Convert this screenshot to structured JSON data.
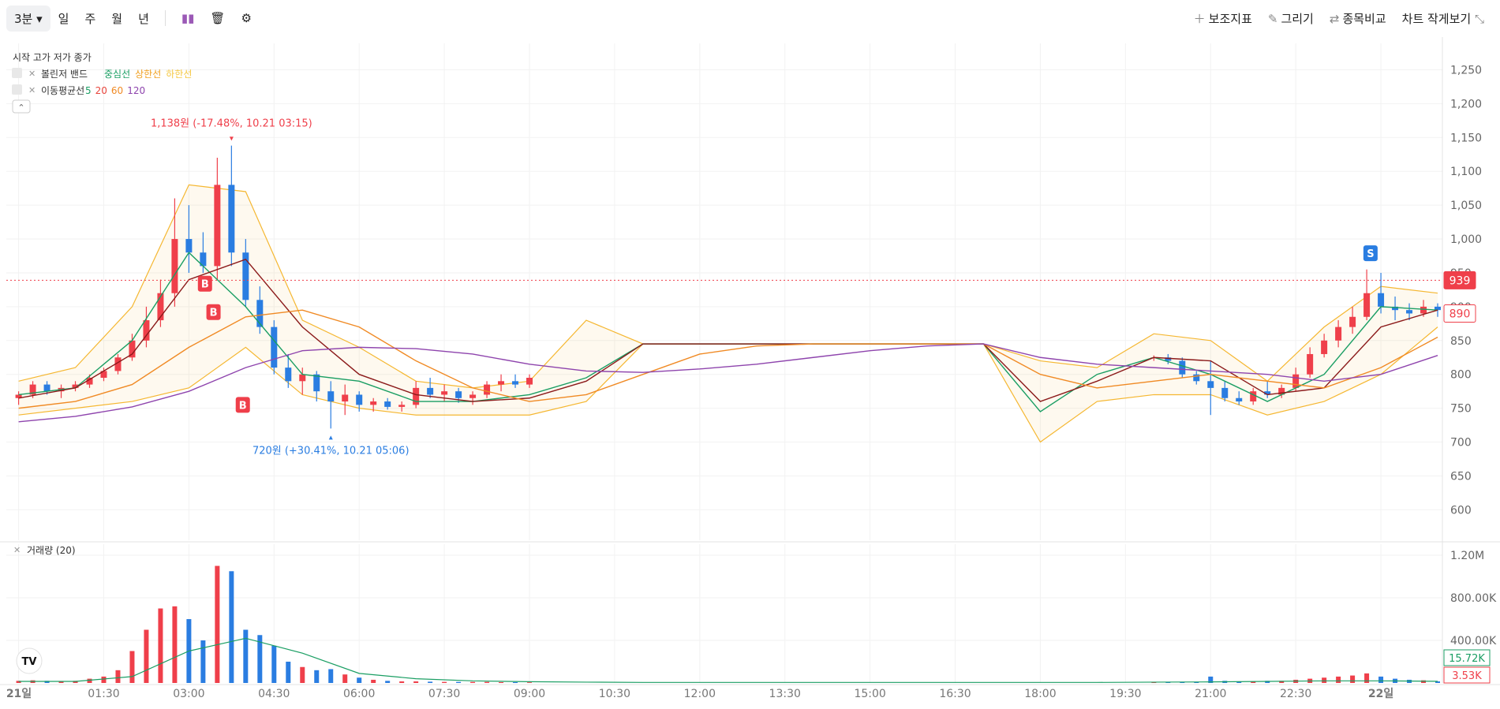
{
  "toolbar": {
    "interval": "3분",
    "periods": [
      "일",
      "주",
      "월",
      "년"
    ],
    "actions": [
      "보조지표",
      "그리기",
      "종목비교",
      "차트 작게보기"
    ]
  },
  "chart_data": {
    "type": "candlestick",
    "ohlc_label": "시작 고가 저가 종가",
    "indicators": [
      {
        "name": "볼린저 밴드",
        "items": [
          {
            "name": "중심선",
            "color": "#1a9e63"
          },
          {
            "name": "상한선",
            "color": "#f0a020"
          },
          {
            "name": "하한선",
            "color": "#f5c842"
          }
        ]
      },
      {
        "name": "이동평균선"
      }
    ],
    "colors": {
      "up": "#ef3f4a",
      "down": "#2a7de1"
    },
    "x": [
      0,
      15,
      30,
      45,
      60,
      75,
      90,
      105,
      120,
      135,
      150,
      165,
      180,
      195,
      210,
      225,
      240,
      255,
      270,
      285,
      300,
      315,
      330,
      345,
      360,
      375,
      390,
      405,
      420,
      435,
      450,
      465,
      480,
      495,
      510,
      525,
      540,
      1200,
      1215,
      1230,
      1245,
      1260,
      1275,
      1290,
      1305,
      1320,
      1335,
      1350,
      1365,
      1380,
      1395,
      1410,
      1425,
      1440,
      1455,
      1470,
      1485,
      1500
    ],
    "open": [
      765,
      770,
      785,
      775,
      780,
      785,
      795,
      805,
      825,
      850,
      880,
      920,
      1000,
      980,
      960,
      1080,
      980,
      910,
      870,
      810,
      790,
      800,
      775,
      760,
      770,
      755,
      760,
      752,
      755,
      780,
      770,
      775,
      765,
      770,
      785,
      790,
      785,
      825,
      825,
      820,
      800,
      790,
      780,
      765,
      760,
      775,
      770,
      780,
      800,
      830,
      850,
      870,
      885,
      920,
      900,
      895,
      890,
      900
    ],
    "high": [
      775,
      790,
      790,
      785,
      790,
      800,
      810,
      830,
      860,
      900,
      940,
      1060,
      1050,
      1010,
      1120,
      1138,
      1000,
      930,
      880,
      830,
      810,
      805,
      790,
      785,
      775,
      765,
      765,
      760,
      790,
      795,
      785,
      780,
      775,
      790,
      800,
      800,
      800,
      828,
      830,
      825,
      805,
      820,
      790,
      775,
      780,
      790,
      785,
      810,
      840,
      860,
      880,
      900,
      955,
      950,
      915,
      905,
      910,
      905
    ],
    "low": [
      755,
      765,
      770,
      765,
      775,
      780,
      790,
      800,
      820,
      840,
      870,
      900,
      950,
      950,
      940,
      960,
      900,
      860,
      800,
      780,
      770,
      760,
      720,
      740,
      745,
      745,
      748,
      745,
      750,
      765,
      760,
      758,
      755,
      765,
      775,
      780,
      780,
      820,
      815,
      795,
      785,
      740,
      760,
      755,
      755,
      765,
      765,
      775,
      795,
      825,
      840,
      860,
      880,
      890,
      880,
      880,
      885,
      885
    ],
    "close": [
      770,
      785,
      775,
      780,
      785,
      795,
      805,
      825,
      850,
      880,
      920,
      1000,
      980,
      960,
      1080,
      980,
      910,
      870,
      810,
      790,
      800,
      775,
      760,
      770,
      755,
      760,
      752,
      755,
      780,
      770,
      775,
      765,
      770,
      785,
      790,
      785,
      795,
      825,
      820,
      800,
      790,
      780,
      765,
      760,
      775,
      770,
      780,
      800,
      830,
      850,
      870,
      885,
      920,
      900,
      895,
      890,
      900,
      895
    ],
    "volume": [
      20000,
      25000,
      20000,
      15000,
      20000,
      40000,
      60000,
      120000,
      300000,
      500000,
      700000,
      720000,
      600000,
      400000,
      1100000,
      1050000,
      500000,
      450000,
      350000,
      200000,
      150000,
      120000,
      130000,
      80000,
      50000,
      30000,
      20000,
      15000,
      15000,
      12000,
      10000,
      10000,
      10000,
      10000,
      8000,
      8000,
      6000,
      5000,
      8000,
      10000,
      8000,
      60000,
      20000,
      15000,
      15000,
      20000,
      20000,
      30000,
      40000,
      50000,
      60000,
      70000,
      90000,
      60000,
      40000,
      30000,
      25000,
      15000
    ],
    "xlim": [
      -13,
      1505
    ],
    "xticks": [
      {
        "value": 0,
        "label": "21일"
      },
      {
        "value": 90,
        "label": "01:30"
      },
      {
        "value": 180,
        "label": "03:00"
      },
      {
        "value": 270,
        "label": "04:30"
      },
      {
        "value": 360,
        "label": "06:00"
      },
      {
        "value": 450,
        "label": "07:30"
      },
      {
        "value": 540,
        "label": "09:00"
      },
      {
        "value": 630,
        "label": "10:30"
      },
      {
        "value": 720,
        "label": "12:00"
      },
      {
        "value": 810,
        "label": "13:30"
      },
      {
        "value": 900,
        "label": "15:00"
      },
      {
        "value": 990,
        "label": "16:30"
      },
      {
        "value": 1080,
        "label": "18:00"
      },
      {
        "value": 1170,
        "label": "19:30"
      },
      {
        "value": 1260,
        "label": "21:00"
      },
      {
        "value": 1350,
        "label": "22:30"
      },
      {
        "value": 1440,
        "label": "22일"
      }
    ],
    "ylim": [
      555,
      1289
    ],
    "yticks": [
      600,
      650,
      700,
      750,
      800,
      850,
      900,
      950,
      {
        "value": 1000,
        "label": "1,000"
      },
      {
        "value": 1050,
        "label": "1,050"
      },
      {
        "value": 1100,
        "label": "1,100"
      },
      {
        "value": 1150,
        "label": "1,150"
      },
      {
        "value": 1200,
        "label": "1,200"
      },
      {
        "value": 1250,
        "label": "1,250"
      }
    ],
    "grid": true,
    "line_x": [
      0,
      60,
      120,
      180,
      240,
      300,
      360,
      420,
      480,
      540,
      600,
      660,
      720,
      780,
      840,
      900,
      960,
      1020,
      1080,
      1140,
      1200,
      1260,
      1320,
      1380,
      1440,
      1500
    ],
    "lines": [
      {
        "name": "5",
        "color": "#1a9e63",
        "values": [
          770,
          780,
          850,
          980,
          900,
          800,
          790,
          760,
          760,
          770,
          795,
          845,
          845,
          845,
          845,
          845,
          845,
          845,
          745,
          800,
          825,
          800,
          760,
          800,
          900,
          895
        ]
      },
      {
        "name": "20",
        "color": "#e8453c",
        "line_color": "#8b1a1a",
        "values": [
          765,
          780,
          830,
          940,
          970,
          870,
          800,
          770,
          760,
          765,
          790,
          845,
          845,
          845,
          845,
          845,
          845,
          845,
          760,
          790,
          825,
          820,
          770,
          780,
          870,
          895
        ]
      },
      {
        "name": "60",
        "color": "#f08a24",
        "values": [
          750,
          760,
          785,
          840,
          885,
          895,
          870,
          820,
          780,
          760,
          770,
          800,
          830,
          842,
          845,
          845,
          845,
          845,
          800,
          780,
          790,
          800,
          790,
          780,
          810,
          855
        ]
      },
      {
        "name": "120",
        "color": "#8e44ad",
        "values": [
          730,
          738,
          752,
          775,
          810,
          835,
          840,
          838,
          830,
          815,
          805,
          803,
          808,
          815,
          825,
          835,
          842,
          845,
          825,
          815,
          810,
          805,
          800,
          790,
          800,
          828
        ]
      }
    ],
    "bands": {
      "color": "#f5b731",
      "upper": [
        790,
        810,
        900,
        1080,
        1070,
        880,
        840,
        790,
        780,
        790,
        880,
        845,
        845,
        845,
        845,
        845,
        845,
        845,
        820,
        810,
        860,
        850,
        790,
        870,
        930,
        920
      ],
      "lower": [
        740,
        750,
        760,
        780,
        840,
        770,
        750,
        740,
        740,
        740,
        760,
        845,
        845,
        845,
        845,
        845,
        845,
        845,
        700,
        760,
        770,
        770,
        740,
        760,
        800,
        870
      ]
    },
    "high_label": "1,138원 (-17.48%, 10.21 03:15)",
    "low_label": "720원 (+30.41%, 10.21 05:06)",
    "trade_markers": [
      {
        "label": "B",
        "x": 197,
        "price": 934,
        "color": "#ef3f4a"
      },
      {
        "label": "B",
        "x": 206,
        "price": 892,
        "color": "#ef3f4a"
      },
      {
        "label": "B",
        "x": 237,
        "price": 755,
        "color": "#ef3f4a"
      },
      {
        "label": "S",
        "x": 1429,
        "price": 979,
        "color": "#2a7de1"
      }
    ],
    "price_tags": [
      {
        "value": 939,
        "style": "filled",
        "color": "#ef3f4a"
      },
      {
        "value": 890,
        "style": "outline",
        "color": "#ef3f4a"
      }
    ],
    "volume_pane": {
      "title": "거래량 (20)",
      "ylim": [
        0,
        1304000
      ],
      "yticks": [
        {
          "value": 400000,
          "label": "400.00K"
        },
        {
          "value": 800000,
          "label": "800.00K"
        },
        {
          "value": 1200000,
          "label": "1.20M"
        }
      ],
      "ma": {
        "color": "#1a9e63",
        "values": [
          15000,
          15000,
          60000,
          300000,
          420000,
          280000,
          90000,
          40000,
          20000,
          12000,
          8000,
          5000,
          5000,
          5000,
          5000,
          5000,
          5000,
          5000,
          5000,
          5000,
          8000,
          10000,
          15000,
          20000,
          20000,
          16000
        ]
      },
      "tags": [
        {
          "value": 15720,
          "label": "15.72K",
          "color": "#1a9e63"
        },
        {
          "value": 3530,
          "label": "3.53K",
          "color": "#ef3f4a"
        }
      ]
    }
  }
}
